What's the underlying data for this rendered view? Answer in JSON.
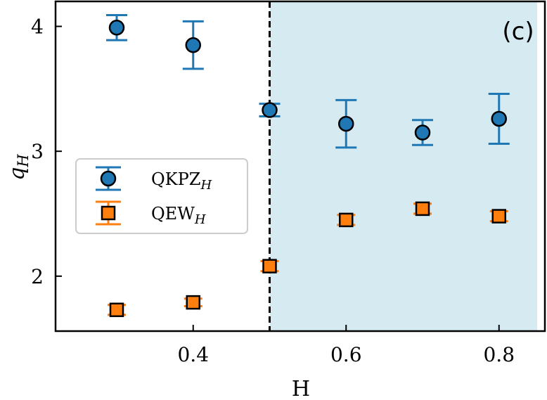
{
  "chart_data": {
    "type": "scatter",
    "panel_label": "(c)",
    "xlabel": "H",
    "ylabel": "q",
    "ylabel_sub": "H",
    "xlim": [
      0.22,
      0.86
    ],
    "ylim": [
      1.56,
      4.2
    ],
    "x_ticks": [
      0.4,
      0.6,
      0.8
    ],
    "x_tick_labels": [
      "0.4",
      "0.6",
      "0.8"
    ],
    "y_ticks": [
      2,
      3,
      4
    ],
    "y_tick_labels": [
      "2",
      "3",
      "4"
    ],
    "vertical_line": {
      "x": 0.5,
      "style": "dashed",
      "color": "#000000"
    },
    "shaded_region": {
      "x_from": 0.5,
      "x_to": 0.85,
      "color": "#d6eaf2"
    },
    "legend_position": "center-left",
    "series": [
      {
        "name": "QKPZ",
        "name_sub": "H",
        "marker": "circle",
        "color": "#1f77b4",
        "points": [
          {
            "x": 0.3,
            "y": 3.99,
            "err": 0.1
          },
          {
            "x": 0.4,
            "y": 3.85,
            "err": 0.19
          },
          {
            "x": 0.5,
            "y": 3.33,
            "err": 0.05
          },
          {
            "x": 0.6,
            "y": 3.22,
            "err": 0.19
          },
          {
            "x": 0.7,
            "y": 3.15,
            "err": 0.1
          },
          {
            "x": 0.8,
            "y": 3.26,
            "err": 0.2
          }
        ]
      },
      {
        "name": "QEW",
        "name_sub": "H",
        "marker": "square",
        "color": "#ff7f0e",
        "points": [
          {
            "x": 0.3,
            "y": 1.73,
            "err": 0.04
          },
          {
            "x": 0.4,
            "y": 1.79,
            "err": 0.03
          },
          {
            "x": 0.5,
            "y": 2.08,
            "err": 0.04
          },
          {
            "x": 0.6,
            "y": 2.45,
            "err": 0.04
          },
          {
            "x": 0.7,
            "y": 2.54,
            "err": 0.04
          },
          {
            "x": 0.8,
            "y": 2.48,
            "err": 0.04
          }
        ]
      }
    ]
  }
}
